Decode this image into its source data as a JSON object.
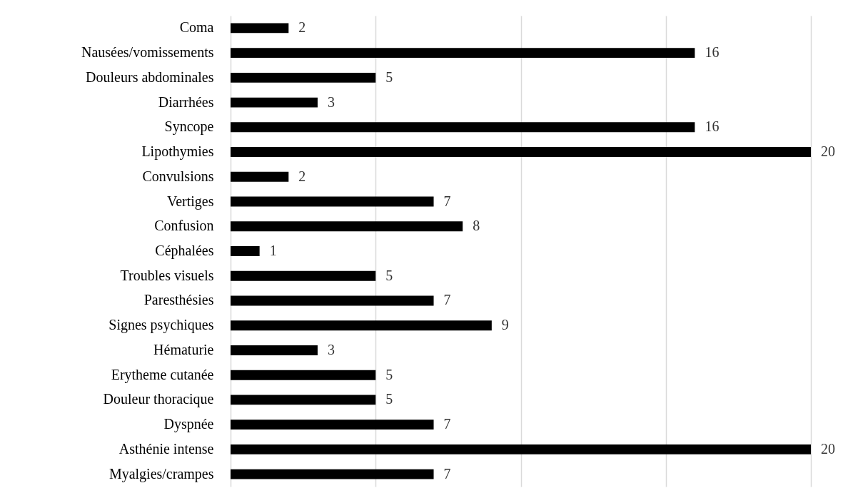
{
  "chart_data": {
    "type": "bar",
    "orientation": "horizontal",
    "categories": [
      "Coma",
      "Nausées/vomissements",
      "Douleurs abdominales",
      "Diarrhées",
      "Syncope",
      "Lipothymies",
      "Convulsions",
      "Vertiges",
      "Confusion",
      "Céphalées",
      "Troubles visuels",
      "Paresthésies",
      "Signes psychiques",
      "Hématurie",
      "Erytheme cutanée",
      "Douleur thoracique",
      "Dyspnée",
      "Asthénie intense",
      "Myalgies/crampes"
    ],
    "values": [
      2,
      16,
      5,
      3,
      16,
      20,
      2,
      7,
      8,
      1,
      5,
      7,
      9,
      3,
      5,
      5,
      7,
      20,
      7
    ],
    "color": "#000000",
    "xlim": [
      0,
      20
    ],
    "xticks": [
      {
        "value": 0,
        "label": null
      },
      {
        "value": 5,
        "label": null
      },
      {
        "value": 10,
        "label": null
      },
      {
        "value": 15,
        "label": null
      },
      {
        "value": 20,
        "label": null
      }
    ],
    "grid": "x",
    "tick_labels": "y",
    "data_labels": true
  }
}
